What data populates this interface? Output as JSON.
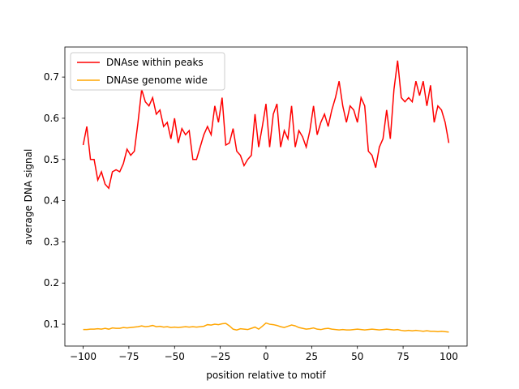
{
  "chart_data": {
    "type": "line",
    "xlabel": "position relative to motif",
    "ylabel": "average DNA signal",
    "x": [
      -100,
      -98,
      -96,
      -94,
      -92,
      -90,
      -88,
      -86,
      -84,
      -82,
      -80,
      -78,
      -76,
      -74,
      -72,
      -70,
      -68,
      -66,
      -64,
      -62,
      -60,
      -58,
      -56,
      -54,
      -52,
      -50,
      -48,
      -46,
      -44,
      -42,
      -40,
      -38,
      -36,
      -34,
      -32,
      -30,
      -28,
      -26,
      -24,
      -22,
      -20,
      -18,
      -16,
      -14,
      -12,
      -10,
      -8,
      -6,
      -4,
      -2,
      0,
      2,
      4,
      6,
      8,
      10,
      12,
      14,
      16,
      18,
      20,
      22,
      24,
      26,
      28,
      30,
      32,
      34,
      36,
      38,
      40,
      42,
      44,
      46,
      48,
      50,
      52,
      54,
      56,
      58,
      60,
      62,
      64,
      66,
      68,
      70,
      72,
      74,
      76,
      78,
      80,
      82,
      84,
      86,
      88,
      90,
      92,
      94,
      96,
      98,
      100
    ],
    "series": [
      {
        "name": "DNAse within peaks",
        "color": "#ff0000",
        "values": [
          0.535,
          0.58,
          0.5,
          0.5,
          0.45,
          0.47,
          0.44,
          0.43,
          0.47,
          0.475,
          0.47,
          0.49,
          0.525,
          0.51,
          0.52,
          0.59,
          0.67,
          0.64,
          0.63,
          0.65,
          0.61,
          0.62,
          0.58,
          0.59,
          0.55,
          0.6,
          0.54,
          0.575,
          0.56,
          0.57,
          0.5,
          0.5,
          0.53,
          0.56,
          0.58,
          0.56,
          0.63,
          0.59,
          0.65,
          0.535,
          0.54,
          0.575,
          0.52,
          0.51,
          0.485,
          0.5,
          0.51,
          0.61,
          0.53,
          0.58,
          0.635,
          0.53,
          0.61,
          0.635,
          0.53,
          0.57,
          0.55,
          0.63,
          0.53,
          0.57,
          0.555,
          0.53,
          0.57,
          0.63,
          0.56,
          0.59,
          0.61,
          0.58,
          0.62,
          0.65,
          0.69,
          0.63,
          0.59,
          0.63,
          0.62,
          0.59,
          0.65,
          0.63,
          0.52,
          0.51,
          0.48,
          0.53,
          0.55,
          0.62,
          0.55,
          0.67,
          0.74,
          0.65,
          0.64,
          0.65,
          0.64,
          0.69,
          0.655,
          0.69,
          0.63,
          0.68,
          0.59,
          0.63,
          0.62,
          0.59,
          0.54
        ]
      },
      {
        "name": "DNAse genome wide",
        "color": "#ffa500",
        "values": [
          0.087,
          0.087,
          0.088,
          0.088,
          0.089,
          0.088,
          0.09,
          0.088,
          0.091,
          0.09,
          0.09,
          0.092,
          0.091,
          0.092,
          0.093,
          0.094,
          0.096,
          0.094,
          0.095,
          0.097,
          0.094,
          0.095,
          0.093,
          0.094,
          0.092,
          0.093,
          0.092,
          0.093,
          0.094,
          0.093,
          0.094,
          0.093,
          0.094,
          0.095,
          0.099,
          0.098,
          0.1,
          0.099,
          0.101,
          0.102,
          0.096,
          0.088,
          0.086,
          0.089,
          0.088,
          0.087,
          0.09,
          0.093,
          0.088,
          0.095,
          0.103,
          0.1,
          0.099,
          0.097,
          0.094,
          0.092,
          0.095,
          0.098,
          0.096,
          0.092,
          0.09,
          0.088,
          0.089,
          0.091,
          0.088,
          0.087,
          0.089,
          0.09,
          0.088,
          0.087,
          0.086,
          0.087,
          0.086,
          0.086,
          0.087,
          0.088,
          0.087,
          0.086,
          0.087,
          0.088,
          0.087,
          0.086,
          0.087,
          0.088,
          0.087,
          0.086,
          0.087,
          0.085,
          0.084,
          0.085,
          0.084,
          0.085,
          0.084,
          0.083,
          0.084,
          0.083,
          0.083,
          0.082,
          0.083,
          0.082,
          0.081
        ]
      }
    ],
    "xlim": [
      -110,
      110
    ],
    "xticks": [
      {
        "value": -100,
        "label": "−100"
      },
      {
        "value": -75,
        "label": "−75"
      },
      {
        "value": -50,
        "label": "−50"
      },
      {
        "value": -25,
        "label": "−25"
      },
      0,
      25,
      50,
      75,
      100
    ],
    "ylim": [
      0.047,
      0.773
    ],
    "yticks": [
      0.1,
      0.2,
      0.3,
      0.4,
      0.5,
      0.6,
      0.7
    ],
    "legend": "upper left"
  }
}
